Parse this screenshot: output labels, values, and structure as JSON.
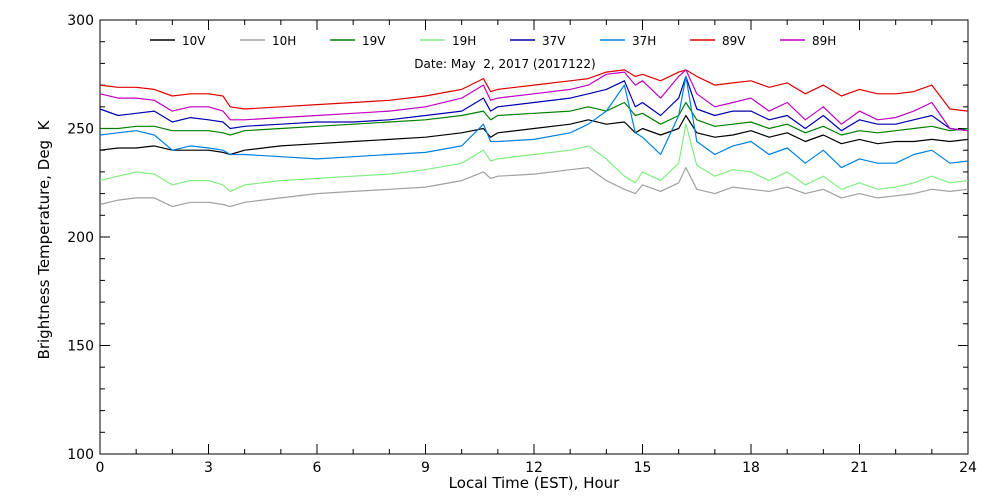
{
  "chart_data": {
    "type": "line",
    "title": "Date: May  2, 2017 (2017122)",
    "xlabel": "Local Time (EST), Hour",
    "ylabel": "Brightness Temperature, Deg  K",
    "xlim": [
      0,
      24
    ],
    "ylim": [
      100,
      300
    ],
    "xticks": [
      0,
      3,
      6,
      9,
      12,
      15,
      18,
      21,
      24
    ],
    "yticks": [
      100,
      150,
      200,
      250,
      300
    ],
    "x_minor_step": 1,
    "y_minor_step": 10,
    "grid": false,
    "legend_position": "top",
    "series": [
      {
        "name": "10V",
        "color": "#000000",
        "x": [
          0,
          0.5,
          1,
          1.5,
          2,
          2.5,
          3,
          3.4,
          3.6,
          4,
          5,
          6,
          7,
          8,
          9,
          10,
          10.6,
          10.8,
          11,
          12,
          13,
          13.5,
          14,
          14.5,
          14.8,
          15,
          15.5,
          16,
          16.2,
          16.5,
          17,
          17.5,
          18,
          18.5,
          19,
          19.5,
          20,
          20.5,
          21,
          21.5,
          22,
          22.5,
          23,
          23.5,
          24
        ],
        "y": [
          240,
          241,
          241,
          242,
          240,
          240,
          240,
          239,
          238,
          240,
          242,
          243,
          244,
          245,
          246,
          248,
          250,
          246,
          248,
          250,
          252,
          254,
          252,
          253,
          248,
          250,
          247,
          250,
          256,
          248,
          246,
          247,
          249,
          246,
          248,
          244,
          247,
          243,
          245,
          243,
          244,
          244,
          245,
          244,
          245
        ]
      },
      {
        "name": "10H",
        "color": "#a0a0a0",
        "x": [
          0,
          0.5,
          1,
          1.5,
          2,
          2.5,
          3,
          3.4,
          3.6,
          4,
          5,
          6,
          7,
          8,
          9,
          10,
          10.6,
          10.8,
          11,
          12,
          13,
          13.5,
          14,
          14.5,
          14.8,
          15,
          15.5,
          16,
          16.2,
          16.5,
          17,
          17.5,
          18,
          18.5,
          19,
          19.5,
          20,
          20.5,
          21,
          21.5,
          22,
          22.5,
          23,
          23.5,
          24
        ],
        "y": [
          215,
          217,
          218,
          218,
          214,
          216,
          216,
          215,
          214,
          216,
          218,
          220,
          221,
          222,
          223,
          226,
          230,
          227,
          228,
          229,
          231,
          232,
          226,
          222,
          220,
          224,
          221,
          225,
          232,
          222,
          220,
          223,
          222,
          221,
          223,
          220,
          222,
          218,
          220,
          218,
          219,
          220,
          222,
          221,
          222
        ]
      },
      {
        "name": "19V",
        "color": "#008000",
        "x": [
          0,
          0.5,
          1,
          1.5,
          2,
          2.5,
          3,
          3.4,
          3.6,
          4,
          5,
          6,
          7,
          8,
          9,
          10,
          10.6,
          10.8,
          11,
          12,
          13,
          13.5,
          14,
          14.5,
          14.8,
          15,
          15.5,
          16,
          16.2,
          16.5,
          17,
          17.5,
          18,
          18.5,
          19,
          19.5,
          20,
          20.5,
          21,
          21.5,
          22,
          22.5,
          23,
          23.5,
          24
        ],
        "y": [
          250,
          250,
          251,
          251,
          249,
          249,
          249,
          248,
          247,
          249,
          250,
          251,
          252,
          253,
          254,
          256,
          258,
          254,
          256,
          257,
          258,
          260,
          258,
          262,
          256,
          257,
          252,
          256,
          262,
          254,
          251,
          252,
          253,
          250,
          252,
          248,
          251,
          247,
          249,
          248,
          249,
          250,
          251,
          249,
          250
        ]
      },
      {
        "name": "19H",
        "color": "#80ee80",
        "x": [
          0,
          0.5,
          1,
          1.5,
          2,
          2.5,
          3,
          3.4,
          3.6,
          4,
          5,
          6,
          7,
          8,
          9,
          10,
          10.6,
          10.8,
          11,
          12,
          13,
          13.5,
          14,
          14.5,
          14.8,
          15,
          15.5,
          16,
          16.2,
          16.5,
          17,
          17.5,
          18,
          18.5,
          19,
          19.5,
          20,
          20.5,
          21,
          21.5,
          22,
          22.5,
          23,
          23.5,
          24
        ],
        "y": [
          226,
          228,
          230,
          229,
          224,
          226,
          226,
          224,
          221,
          224,
          226,
          227,
          228,
          229,
          231,
          234,
          240,
          235,
          236,
          238,
          240,
          242,
          236,
          228,
          225,
          230,
          226,
          234,
          252,
          233,
          228,
          231,
          230,
          226,
          230,
          224,
          228,
          222,
          225,
          222,
          223,
          225,
          228,
          225,
          226
        ]
      },
      {
        "name": "37V",
        "color": "#0000b0",
        "x": [
          0,
          0.5,
          1,
          1.5,
          2,
          2.5,
          3,
          3.4,
          3.6,
          4,
          5,
          6,
          7,
          8,
          9,
          10,
          10.6,
          10.8,
          11,
          12,
          13,
          13.5,
          14,
          14.5,
          14.8,
          15,
          15.5,
          16,
          16.2,
          16.5,
          17,
          17.5,
          18,
          18.5,
          19,
          19.5,
          20,
          20.5,
          21,
          21.5,
          22,
          22.5,
          23,
          23.5,
          24
        ],
        "y": [
          259,
          256,
          257,
          258,
          253,
          255,
          254,
          253,
          250,
          251,
          252,
          253,
          253,
          254,
          256,
          258,
          264,
          258,
          260,
          262,
          264,
          266,
          268,
          272,
          260,
          262,
          256,
          264,
          274,
          259,
          256,
          258,
          258,
          254,
          256,
          250,
          256,
          249,
          254,
          252,
          252,
          254,
          256,
          250,
          249
        ]
      },
      {
        "name": "37H",
        "color": "#0080e0",
        "x": [
          0,
          0.5,
          1,
          1.5,
          2,
          2.5,
          3,
          3.4,
          3.6,
          4,
          5,
          6,
          7,
          8,
          9,
          10,
          10.6,
          10.8,
          11,
          12,
          13,
          13.5,
          14,
          14.5,
          14.8,
          15,
          15.5,
          16,
          16.2,
          16.5,
          17,
          17.5,
          18,
          18.5,
          19,
          19.5,
          20,
          20.5,
          21,
          21.5,
          22,
          22.5,
          23,
          23.5,
          24
        ],
        "y": [
          247,
          248,
          249,
          247,
          240,
          242,
          241,
          240,
          238,
          238,
          237,
          236,
          237,
          238,
          239,
          242,
          252,
          244,
          244,
          245,
          248,
          252,
          258,
          270,
          248,
          246,
          238,
          256,
          274,
          244,
          238,
          242,
          244,
          238,
          241,
          234,
          240,
          232,
          236,
          234,
          234,
          238,
          240,
          234,
          235
        ]
      },
      {
        "name": "89V",
        "color": "#e00000",
        "x": [
          0,
          0.5,
          1,
          1.5,
          2,
          2.5,
          3,
          3.4,
          3.6,
          4,
          5,
          6,
          7,
          8,
          9,
          10,
          10.6,
          10.8,
          11,
          12,
          13,
          13.5,
          14,
          14.5,
          14.8,
          15,
          15.5,
          16,
          16.2,
          16.5,
          17,
          17.5,
          18,
          18.5,
          19,
          19.5,
          20,
          20.5,
          21,
          21.5,
          22,
          22.5,
          23,
          23.5,
          24
        ],
        "y": [
          270,
          269,
          269,
          268,
          265,
          266,
          266,
          265,
          260,
          259,
          260,
          261,
          262,
          263,
          265,
          268,
          273,
          267,
          268,
          270,
          272,
          273,
          276,
          277,
          274,
          275,
          272,
          276,
          277,
          274,
          270,
          271,
          272,
          269,
          271,
          266,
          270,
          265,
          268,
          266,
          266,
          267,
          270,
          259,
          258
        ]
      },
      {
        "name": "89H",
        "color": "#c000c0",
        "x": [
          0,
          0.5,
          1,
          1.5,
          2,
          2.5,
          3,
          3.4,
          3.6,
          4,
          5,
          6,
          7,
          8,
          9,
          10,
          10.6,
          10.8,
          11,
          12,
          13,
          13.5,
          14,
          14.5,
          14.8,
          15,
          15.5,
          16,
          16.2,
          16.5,
          17,
          17.5,
          18,
          18.5,
          19,
          19.5,
          20,
          20.5,
          21,
          21.5,
          22,
          22.5,
          23,
          23.5,
          24
        ],
        "y": [
          266,
          264,
          264,
          263,
          258,
          260,
          260,
          258,
          254,
          254,
          255,
          256,
          257,
          258,
          260,
          264,
          270,
          263,
          264,
          266,
          268,
          270,
          275,
          276,
          270,
          272,
          264,
          274,
          277,
          266,
          260,
          262,
          264,
          258,
          262,
          254,
          260,
          252,
          258,
          254,
          255,
          258,
          262,
          250,
          249
        ]
      }
    ]
  }
}
